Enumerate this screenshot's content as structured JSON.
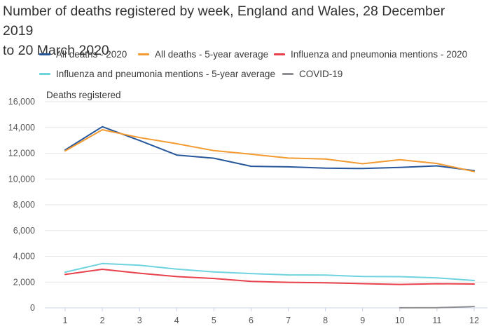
{
  "chart_data": {
    "type": "line",
    "title_line1": "Number of deaths registered by week, England and Wales, 28 December 2019",
    "title_line2": "to 20 March 2020",
    "xlabel": "",
    "ylabel": "Deaths registered",
    "categories": [
      "1",
      "2",
      "3",
      "4",
      "5",
      "6",
      "7",
      "8",
      "9",
      "10",
      "11",
      "12"
    ],
    "ylim": [
      0,
      16000
    ],
    "yticks": [
      0,
      2000,
      4000,
      6000,
      8000,
      10000,
      12000,
      14000,
      16000
    ],
    "ytick_labels": [
      "0",
      "2,000",
      "4,000",
      "6,000",
      "8,000",
      "10,000",
      "12,000",
      "14,000",
      "16,000"
    ],
    "grid": true,
    "legend_position": "top",
    "series": [
      {
        "name": "All deaths - 2020",
        "color": "#27579b",
        "x": [
          1,
          2,
          3,
          4,
          5,
          6,
          7,
          8,
          9,
          10,
          11,
          12
        ],
        "values": [
          12254,
          14058,
          12990,
          11856,
          11612,
          10986,
          10944,
          10841,
          10816,
          10895,
          11019,
          10645
        ]
      },
      {
        "name": "All deaths - 5-year average",
        "color": "#f39a30",
        "x": [
          1,
          2,
          3,
          4,
          5,
          6,
          7,
          8,
          9,
          10,
          11,
          12
        ],
        "values": [
          12175,
          13822,
          13216,
          12738,
          12202,
          11925,
          11627,
          11548,
          11183,
          11498,
          11205,
          10573
        ]
      },
      {
        "name": "Influenza and pneumonia mentions - 2020",
        "color": "#e8414c",
        "x": [
          1,
          2,
          3,
          4,
          5,
          6,
          7,
          8,
          9,
          10,
          11,
          12
        ],
        "values": [
          2590,
          2993,
          2690,
          2429,
          2280,
          2050,
          1980,
          1950,
          1880,
          1820,
          1870,
          1850
        ]
      },
      {
        "name": "Influenza and pneumonia mentions - 5-year average",
        "color": "#6ed3df",
        "x": [
          1,
          2,
          3,
          4,
          5,
          6,
          7,
          8,
          9,
          10,
          11,
          12
        ],
        "values": [
          2770,
          3440,
          3310,
          3010,
          2790,
          2660,
          2560,
          2540,
          2430,
          2420,
          2330,
          2120
        ]
      },
      {
        "name": "COVID-19",
        "color": "#8f8f93",
        "x": [
          10,
          11,
          12
        ],
        "values": [
          5,
          10,
          103
        ]
      }
    ]
  }
}
